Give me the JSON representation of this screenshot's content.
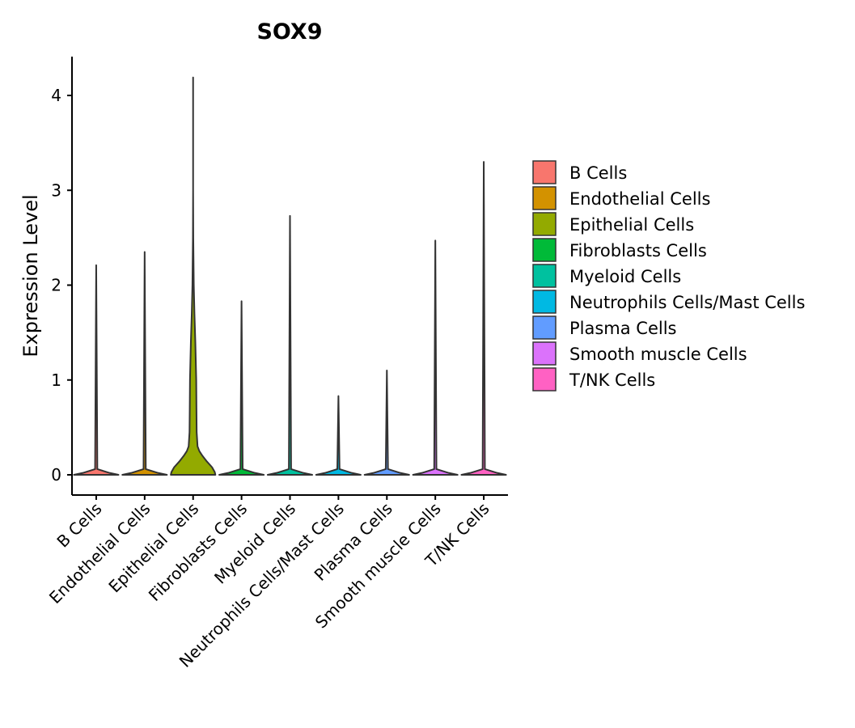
{
  "chart_data": {
    "type": "violin",
    "title": "SOX9",
    "xlabel": "",
    "ylabel": "Expression Level",
    "ylim": [
      -0.22,
      4.4
    ],
    "yticks": [
      0,
      1,
      2,
      3,
      4
    ],
    "categories": [
      "B Cells",
      "Endothelial Cells",
      "Epithelial Cells",
      "Fibroblasts Cells",
      "Myeloid Cells",
      "Neutrophils Cells/Mast Cells",
      "Plasma Cells",
      "Smooth muscle Cells",
      "T/NK Cells"
    ],
    "max_values": [
      2.21,
      2.35,
      4.19,
      1.83,
      2.73,
      0.83,
      1.1,
      2.47,
      3.3
    ],
    "colors": [
      "#F8766D",
      "#D39200",
      "#93AA00",
      "#00BA38",
      "#00C19F",
      "#00B9E3",
      "#619CFF",
      "#DB72FB",
      "#FF61C3"
    ],
    "density_profiles": [
      [
        [
          0,
          1.0
        ],
        [
          0.02,
          0.6
        ],
        [
          0.06,
          0.05
        ],
        [
          2.21,
          0.0
        ]
      ],
      [
        [
          0,
          1.0
        ],
        [
          0.02,
          0.6
        ],
        [
          0.06,
          0.05
        ],
        [
          2.35,
          0.0
        ]
      ],
      [
        [
          0,
          1.0
        ],
        [
          0.03,
          0.97
        ],
        [
          0.08,
          0.85
        ],
        [
          0.14,
          0.62
        ],
        [
          0.2,
          0.42
        ],
        [
          0.25,
          0.28
        ],
        [
          0.3,
          0.2
        ],
        [
          0.45,
          0.16
        ],
        [
          0.7,
          0.15
        ],
        [
          1.0,
          0.14
        ],
        [
          1.2,
          0.12
        ],
        [
          1.4,
          0.1
        ],
        [
          1.7,
          0.06
        ],
        [
          2.0,
          0.03
        ],
        [
          2.5,
          0.008
        ],
        [
          3.0,
          0.0
        ],
        [
          4.19,
          0.0
        ]
      ],
      [
        [
          0,
          1.0
        ],
        [
          0.02,
          0.6
        ],
        [
          0.06,
          0.05
        ],
        [
          1.83,
          0.0
        ]
      ],
      [
        [
          0,
          1.0
        ],
        [
          0.02,
          0.6
        ],
        [
          0.06,
          0.05
        ],
        [
          2.73,
          0.0
        ]
      ],
      [
        [
          0,
          1.0
        ],
        [
          0.02,
          0.6
        ],
        [
          0.06,
          0.05
        ],
        [
          0.83,
          0.0
        ]
      ],
      [
        [
          0,
          1.0
        ],
        [
          0.02,
          0.6
        ],
        [
          0.06,
          0.05
        ],
        [
          1.1,
          0.0
        ]
      ],
      [
        [
          0,
          1.0
        ],
        [
          0.02,
          0.6
        ],
        [
          0.06,
          0.05
        ],
        [
          2.47,
          0.0
        ]
      ],
      [
        [
          0,
          1.0
        ],
        [
          0.02,
          0.6
        ],
        [
          0.06,
          0.05
        ],
        [
          3.3,
          0.0
        ]
      ]
    ],
    "legend": {
      "position": "right",
      "items": [
        {
          "label": "B Cells",
          "color": "#F8766D"
        },
        {
          "label": "Endothelial Cells",
          "color": "#D39200"
        },
        {
          "label": "Epithelial Cells",
          "color": "#93AA00"
        },
        {
          "label": "Fibroblasts Cells",
          "color": "#00BA38"
        },
        {
          "label": "Myeloid Cells",
          "color": "#00C19F"
        },
        {
          "label": "Neutrophils Cells/Mast Cells",
          "color": "#00B9E3"
        },
        {
          "label": "Plasma Cells",
          "color": "#619CFF"
        },
        {
          "label": "Smooth muscle Cells",
          "color": "#DB72FB"
        },
        {
          "label": "T/NK Cells",
          "color": "#FF61C3"
        }
      ]
    }
  }
}
